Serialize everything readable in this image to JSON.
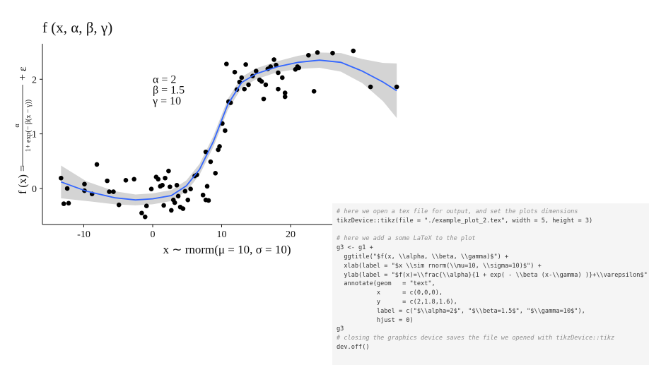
{
  "chart_data": {
    "type": "scatter",
    "title": "f (x, α, β, γ)",
    "x_label": "x ∼ rnorm(μ = 10, σ = 10)",
    "y_label": {
      "left": "f (x) =",
      "numerator": "α",
      "denominator": "1+ exp(− β(x − γ))",
      "right": "+ ε"
    },
    "xlim": [
      -16,
      36
    ],
    "ylim": [
      -0.66,
      2.65
    ],
    "xticks": [
      -10,
      0,
      10,
      20
    ],
    "yticks": [
      0,
      1,
      2
    ],
    "points": {
      "color": "#000000",
      "x": [
        -13.3,
        -12.4,
        -12.9,
        -12.2,
        -9.9,
        -9.9,
        -8.1,
        -8.8,
        -6.6,
        -6.3,
        -5.7,
        -4.9,
        -3.9,
        -2.7,
        -1.6,
        -1.1,
        -0.9,
        -0.2,
        0.5,
        0.8,
        1.1,
        1.4,
        1.6,
        1.8,
        2.3,
        2.5,
        2.7,
        3.0,
        3.2,
        3.5,
        3.7,
        4.0,
        4.4,
        4.7,
        5.1,
        5.5,
        6.1,
        6.4,
        7.3,
        7.7,
        7.9,
        8.1,
        7.7,
        8.4,
        9.1,
        9.5,
        9.7,
        10.1,
        10.5,
        11.0,
        11.3,
        10.7,
        11.9,
        12.2,
        12.6,
        12.9,
        13.3,
        13.5,
        13.9,
        14.5,
        15.0,
        15.5,
        15.8,
        16.1,
        16.4,
        16.7,
        17.1,
        17.6,
        17.9,
        18.2,
        18.8,
        19.2,
        19.2,
        18.2,
        20.7,
        21.0,
        21.2,
        22.6,
        23.9,
        23.4,
        26.1,
        29.1,
        31.6,
        35.4
      ],
      "y": [
        0.19,
        0.0,
        -0.28,
        -0.27,
        0.08,
        -0.04,
        0.44,
        -0.1,
        0.14,
        -0.06,
        -0.06,
        -0.3,
        0.15,
        0.17,
        -0.45,
        -0.52,
        -0.32,
        -0.01,
        0.21,
        0.17,
        0.04,
        0.06,
        -0.31,
        0.19,
        0.32,
        0.03,
        -0.4,
        -0.21,
        -0.26,
        0.06,
        -0.14,
        -0.34,
        -0.37,
        -0.05,
        -0.21,
        -0.01,
        0.23,
        0.25,
        -0.12,
        -0.21,
        0.04,
        -0.22,
        0.67,
        0.49,
        0.28,
        0.71,
        0.77,
        1.19,
        1.06,
        1.59,
        1.57,
        2.28,
        2.13,
        1.81,
        1.95,
        2.03,
        1.82,
        2.27,
        1.9,
        2.06,
        2.15,
        1.99,
        1.96,
        1.64,
        1.9,
        2.19,
        2.23,
        2.36,
        2.26,
        2.12,
        2.03,
        1.75,
        1.68,
        1.82,
        2.18,
        2.23,
        2.21,
        2.44,
        2.49,
        1.78,
        2.48,
        2.52,
        1.86,
        1.86
      ]
    },
    "smooth": {
      "color": "#3366ff",
      "band_color": "#cccccc",
      "x": [
        -13.3,
        -9.6,
        -5.5,
        -2.5,
        0,
        2.7,
        4.9,
        6.8,
        8.8,
        10.9,
        12.9,
        15.0,
        18.1,
        21.1,
        24.2,
        27.3,
        30.4,
        33.4,
        35.4
      ],
      "y": [
        0.12,
        -0.05,
        -0.17,
        -0.21,
        -0.19,
        -0.13,
        0.05,
        0.35,
        0.86,
        1.54,
        1.94,
        2.1,
        2.23,
        2.31,
        2.35,
        2.31,
        2.15,
        1.95,
        1.79
      ],
      "lower": [
        -0.18,
        -0.23,
        -0.29,
        -0.31,
        -0.29,
        -0.23,
        -0.05,
        0.25,
        0.76,
        1.44,
        1.84,
        2.0,
        2.13,
        2.19,
        2.21,
        2.14,
        1.93,
        1.6,
        1.29
      ],
      "upper": [
        0.42,
        0.13,
        -0.05,
        -0.11,
        -0.09,
        -0.03,
        0.15,
        0.45,
        0.96,
        1.64,
        2.04,
        2.2,
        2.33,
        2.43,
        2.49,
        2.48,
        2.37,
        2.3,
        2.29
      ]
    },
    "annotations": [
      {
        "text": "α = 2",
        "x": 0,
        "y": 2
      },
      {
        "text": "β = 1.5",
        "x": 0,
        "y": 1.8
      },
      {
        "text": "γ = 10",
        "x": 0,
        "y": 1.6
      }
    ]
  },
  "code": {
    "blocks": [
      [
        "# here we open a tex file for output, and set the plots dimensions",
        "tikzDevice::tikz(file = \"./example_plot_2.tex\", width = 5, height = 3)"
      ],
      [
        "# here we add a some LaTeX to the plot",
        "g3 <- g1 +",
        "  ggtitle(\"$f(x, \\\\alpha, \\\\beta, \\\\gamma)$\") +",
        "  xlab(label = \"$x \\\\sim rnorm(\\\\mu=10, \\\\sigma=10)$\") +",
        "  ylab(label = \"$f(x)=\\\\frac{\\\\alpha}{1 + exp( - \\\\beta (x-\\\\gamma) )}+\\\\varepsilon$\"",
        "  annotate(geom   = \"text\",",
        "           x      = c(0,0,0),",
        "           y      = c(2,1.8,1.6),",
        "           label = c(\"$\\\\alpha=2$\", \"$\\\\beta=1.5$\", \"$\\\\gamma=10$\"),",
        "           hjust = 0)",
        "g3",
        "# closing the graphics device saves the file we opened with tikzDevice::tikz",
        "dev.off()"
      ]
    ]
  }
}
